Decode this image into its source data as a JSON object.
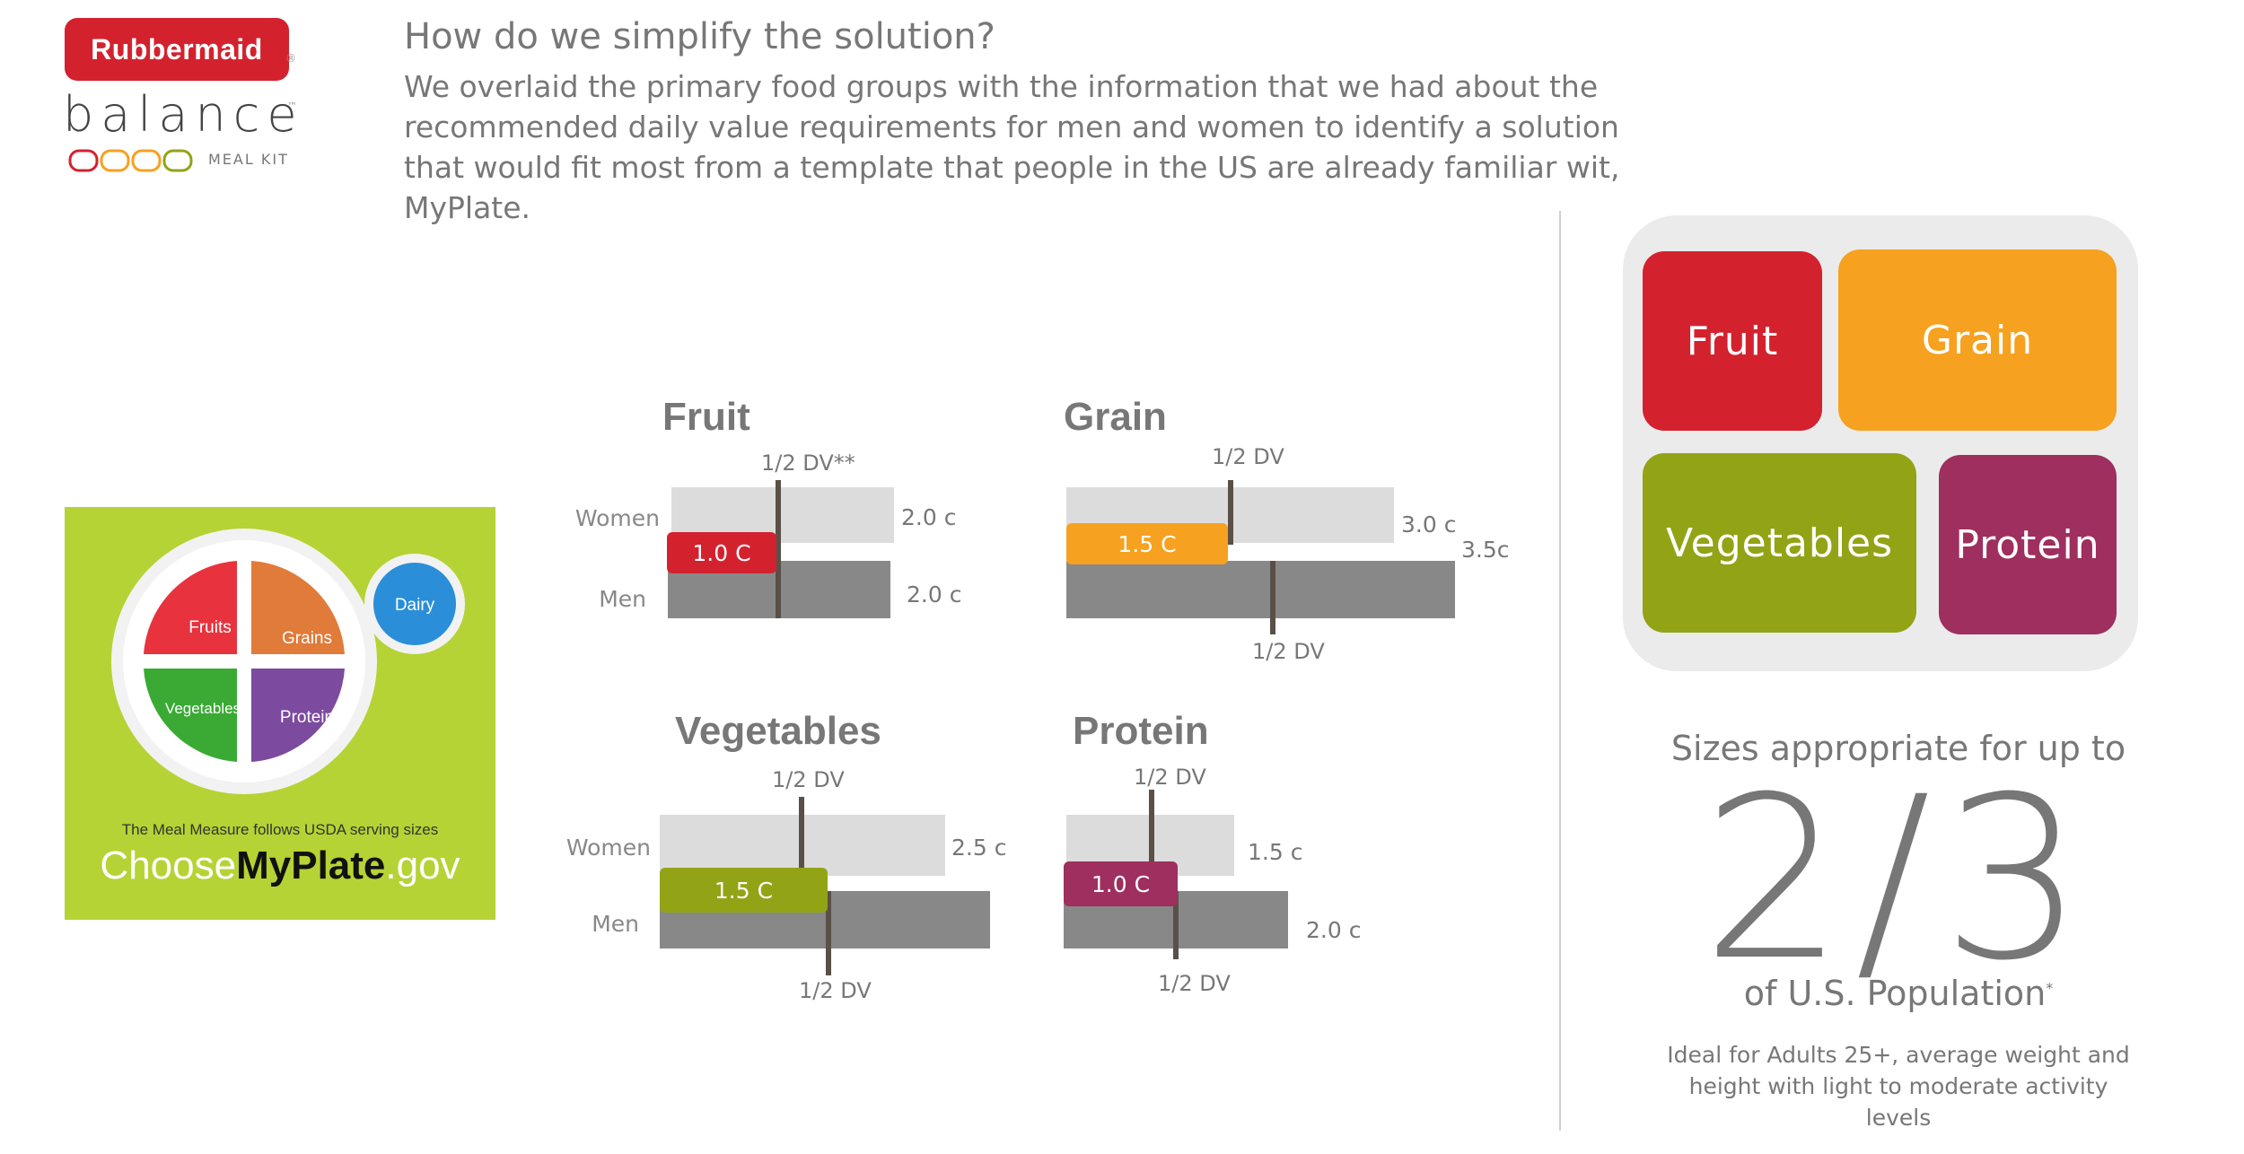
{
  "brand": {
    "badge": "Rubbermaid",
    "reg_mark": "®",
    "product": "balance",
    "tm": "™",
    "kit": "MEAL KIT"
  },
  "header": {
    "heading": "How do we simplify the solution?",
    "intro": "We overlaid the primary food groups with the information that we had about the recommended daily value requirements for men and women to identify a solution that would fit most from a template that people in the US are already familiar wit, MyPlate."
  },
  "myplate": {
    "sections": [
      "Fruits",
      "Grains",
      "Vegetables",
      "Protein",
      "Dairy"
    ],
    "tagline": "The Meal Measure follows USDA serving sizes",
    "site_pre": "Choose",
    "site_bold": "MyPlate",
    "site_post": ".gov",
    "colors": {
      "fruits": "#e8333f",
      "grains": "#e07b39",
      "vegetables": "#3aaa35",
      "protein": "#7c4a9e",
      "dairy": "#2a8fd8",
      "bg": "#b5d334"
    }
  },
  "charts": {
    "row_labels": {
      "women": "Women",
      "men": "Men"
    },
    "fruit": {
      "title": "Fruit",
      "dv_top": "1/2 DV**",
      "women_value": "2.0 c",
      "men_value": "2.0 c",
      "serving": "1.0 C",
      "color": "#d3222e"
    },
    "grain": {
      "title": "Grain",
      "dv_top": "1/2 DV",
      "dv_bottom": "1/2 DV",
      "women_value": "3.0 c",
      "men_value": "3.5c",
      "serving": "1.5 C",
      "color": "#f6a11f"
    },
    "vegetables": {
      "title": "Vegetables",
      "dv_top": "1/2 DV",
      "dv_bottom": "1/2 DV",
      "women_value": "2.5 c",
      "serving": "1.5 C",
      "color": "#93a316"
    },
    "protein": {
      "title": "Protein",
      "dv_top": "1/2 DV",
      "dv_bottom": "1/2 DV",
      "women_value": "1.5 c",
      "men_value": "2.0 c",
      "serving": "1.0 C",
      "color": "#9e2f5e"
    }
  },
  "container": {
    "fruit": "Fruit",
    "grain": "Grain",
    "vegetables": "Vegetables",
    "protein": "Protein"
  },
  "stats": {
    "sizes": "Sizes appropriate for up to",
    "fraction": "2/3",
    "population": "of U.S. Population",
    "asterisk": "*",
    "ideal": "Ideal for Adults 25+, average weight and height with light to moderate activity levels"
  }
}
